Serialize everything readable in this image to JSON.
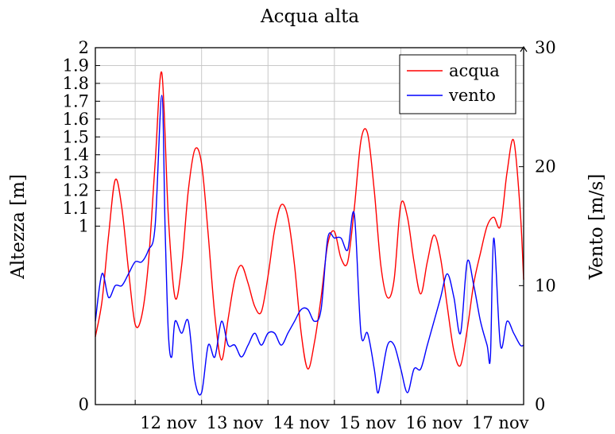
{
  "chart_data": {
    "type": "line",
    "title": "Acqua alta",
    "ylabel_left": "Altezza [m]",
    "ylabel_right": "Vento [m/s]",
    "x_range_days": [
      11.4,
      17.85
    ],
    "x_ticks": [
      {
        "label": "12 nov",
        "day": 12.5
      },
      {
        "label": "13 nov",
        "day": 13.5
      },
      {
        "label": "14 nov",
        "day": 14.5
      },
      {
        "label": "15 nov",
        "day": 15.5
      },
      {
        "label": "16 nov",
        "day": 16.5
      },
      {
        "label": "17 nov",
        "day": 17.5
      }
    ],
    "y_left": {
      "ylim": [
        0,
        2
      ],
      "ticks": [
        "0",
        "1",
        "1.1",
        "1.2",
        "1.3",
        "1.4",
        "1.5",
        "1.6",
        "1.7",
        "1.8",
        "1.9",
        "2"
      ],
      "tick_values": [
        0,
        1,
        1.1,
        1.2,
        1.3,
        1.4,
        1.5,
        1.6,
        1.7,
        1.8,
        1.9,
        2
      ]
    },
    "y_right": {
      "ylim": [
        0,
        30
      ],
      "ticks": [
        "0",
        "10",
        "20",
        "30"
      ],
      "tick_values": [
        0,
        10,
        20,
        30
      ]
    },
    "grid": true,
    "legend_position": "top-right",
    "series": [
      {
        "name": "acqua",
        "color": "#ff0000",
        "axis": "left",
        "x": [
          11.4,
          11.5,
          11.6,
          11.7,
          11.8,
          11.9,
          12.0,
          12.1,
          12.2,
          12.3,
          12.4,
          12.5,
          12.6,
          12.7,
          12.8,
          12.9,
          13.0,
          13.1,
          13.2,
          13.3,
          13.4,
          13.5,
          13.6,
          13.7,
          13.8,
          13.9,
          14.0,
          14.1,
          14.2,
          14.3,
          14.4,
          14.5,
          14.6,
          14.7,
          14.8,
          14.9,
          15.0,
          15.1,
          15.2,
          15.3,
          15.4,
          15.5,
          15.6,
          15.7,
          15.8,
          15.9,
          16.0,
          16.1,
          16.2,
          16.3,
          16.4,
          16.5,
          16.6,
          16.7,
          16.8,
          16.9,
          17.0,
          17.1,
          17.2,
          17.3,
          17.4,
          17.5,
          17.6,
          17.7,
          17.8,
          17.85
        ],
        "values": [
          0.38,
          0.58,
          0.95,
          1.26,
          1.1,
          0.75,
          0.45,
          0.5,
          0.8,
          1.35,
          1.86,
          1.05,
          0.6,
          0.78,
          1.2,
          1.43,
          1.35,
          0.95,
          0.5,
          0.25,
          0.48,
          0.7,
          0.78,
          0.68,
          0.55,
          0.52,
          0.72,
          0.98,
          1.12,
          1.05,
          0.78,
          0.4,
          0.2,
          0.35,
          0.6,
          0.9,
          0.97,
          0.82,
          0.8,
          1.1,
          1.48,
          1.52,
          1.2,
          0.78,
          0.6,
          0.7,
          1.12,
          1.05,
          0.8,
          0.62,
          0.8,
          0.95,
          0.82,
          0.55,
          0.3,
          0.22,
          0.42,
          0.68,
          0.85,
          1.0,
          1.05,
          1.0,
          1.3,
          1.48,
          1.08,
          0.7
        ],
        "samples_note": ""
      },
      {
        "name": "vento",
        "color": "#0000ff",
        "axis": "right",
        "x": [
          11.4,
          11.5,
          11.6,
          11.7,
          11.8,
          11.9,
          12.0,
          12.1,
          12.2,
          12.3,
          12.4,
          12.45,
          12.5,
          12.55,
          12.6,
          12.7,
          12.8,
          12.9,
          13.0,
          13.1,
          13.2,
          13.3,
          13.4,
          13.5,
          13.6,
          13.7,
          13.8,
          13.9,
          14.0,
          14.1,
          14.2,
          14.3,
          14.4,
          14.5,
          14.6,
          14.7,
          14.8,
          14.9,
          15.0,
          15.1,
          15.2,
          15.3,
          15.4,
          15.5,
          15.6,
          15.65,
          15.7,
          15.8,
          15.9,
          16.0,
          16.1,
          16.2,
          16.3,
          16.4,
          16.5,
          16.6,
          16.7,
          16.8,
          16.9,
          17.0,
          17.1,
          17.2,
          17.3,
          17.35,
          17.4,
          17.5,
          17.6,
          17.7,
          17.8,
          17.85
        ],
        "values": [
          7,
          11,
          9,
          10,
          10,
          11,
          12,
          12,
          13,
          15,
          26,
          15,
          6,
          4,
          7,
          6,
          7,
          2,
          1,
          5,
          4,
          7,
          5,
          5,
          4,
          5,
          6,
          5,
          6,
          6,
          5,
          6,
          7,
          8,
          8,
          7,
          8,
          14,
          14,
          14,
          13,
          16,
          6,
          6,
          3,
          1,
          2,
          5,
          5,
          3,
          1,
          3,
          3,
          5,
          7,
          9,
          11,
          9,
          6,
          12,
          10,
          7,
          5,
          4,
          14,
          5,
          7,
          6,
          5,
          5
        ]
      }
    ]
  }
}
